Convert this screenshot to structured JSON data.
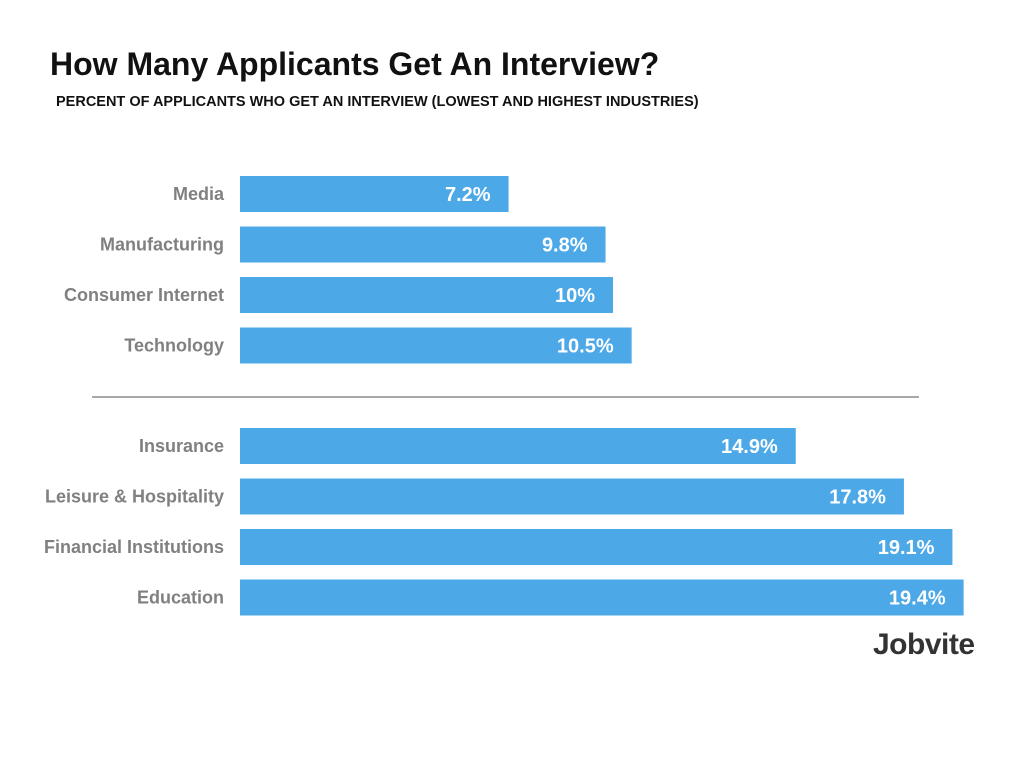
{
  "header": {
    "title": "How Many Applicants Get An Interview?",
    "subtitle": "PERCENT OF APPLICANTS WHO GET AN INTERVIEW (LOWEST AND HIGHEST INDUSTRIES)"
  },
  "brand": {
    "name": "Jobvite"
  },
  "colors": {
    "bar": "#4da8e8",
    "divider": "#8c8c8c",
    "category_text": "#808080",
    "value_text": "#ffffff"
  },
  "chart_data": {
    "type": "bar",
    "orientation": "horizontal",
    "title": "How Many Applicants Get An Interview?",
    "subtitle": "PERCENT OF APPLICANTS WHO GET AN INTERVIEW (LOWEST AND HIGHEST INDUSTRIES)",
    "xlabel": "",
    "ylabel": "",
    "xlim": [
      0,
      20
    ],
    "grid": false,
    "groups": [
      {
        "categories": [
          "Media",
          "Manufacturing",
          "Consumer Internet",
          "Technology"
        ],
        "values": [
          7.2,
          9.8,
          10,
          10.5
        ],
        "labels": [
          "7.2%",
          "9.8%",
          "10%",
          "10.5%"
        ]
      },
      {
        "categories": [
          "Insurance",
          "Leisure & Hospitality",
          "Financial Institutions",
          "Education"
        ],
        "values": [
          14.9,
          17.8,
          19.1,
          19.4
        ],
        "labels": [
          "14.9%",
          "17.8%",
          "19.1%",
          "19.4%"
        ]
      }
    ]
  }
}
